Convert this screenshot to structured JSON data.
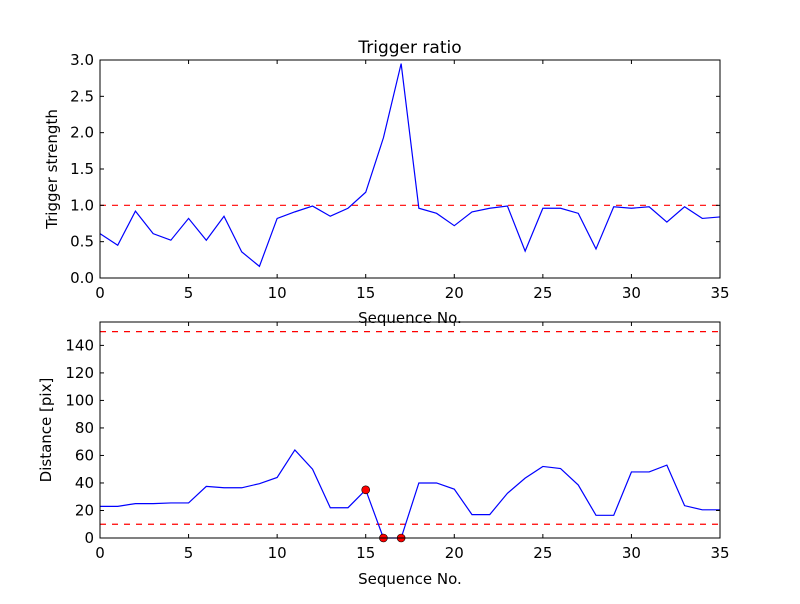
{
  "chart_data": [
    {
      "type": "line",
      "title": "Trigger ratio",
      "xlabel": "Sequence No.",
      "ylabel": "Trigger strength",
      "xlim": [
        0,
        35
      ],
      "ylim": [
        0,
        3.0
      ],
      "xticks": [
        "0",
        "5",
        "10",
        "15",
        "20",
        "25",
        "30",
        "35"
      ],
      "yticks": [
        "0.0",
        "0.5",
        "1.0",
        "1.5",
        "2.0",
        "2.5",
        "3.0"
      ],
      "series": [
        {
          "name": "trigger",
          "color": "#0000ff",
          "x": [
            0,
            1,
            2,
            3,
            4,
            5,
            6,
            7,
            8,
            9,
            10,
            11,
            12,
            13,
            14,
            15,
            16,
            17,
            18,
            19,
            20,
            21,
            22,
            23,
            24,
            25,
            26,
            27,
            28,
            29,
            30,
            31,
            32,
            33,
            34,
            35
          ],
          "y": [
            0.61,
            0.45,
            0.92,
            0.61,
            0.52,
            0.82,
            0.52,
            0.85,
            0.36,
            0.16,
            0.82,
            0.91,
            0.99,
            0.85,
            0.96,
            1.18,
            1.93,
            2.95,
            0.96,
            0.89,
            0.72,
            0.91,
            0.96,
            0.99,
            0.37,
            0.96,
            0.96,
            0.89,
            0.4,
            0.98,
            0.96,
            0.98,
            0.77,
            0.98,
            0.82,
            0.84
          ]
        }
      ],
      "thresholds": [
        {
          "value": 1.0,
          "color": "#ff0000",
          "style": "dashed"
        }
      ]
    },
    {
      "type": "line",
      "title": "",
      "xlabel": "Sequence No.",
      "ylabel": "Distance [pix]",
      "xlim": [
        0,
        35
      ],
      "ylim": [
        0,
        157
      ],
      "xticks": [
        "0",
        "5",
        "10",
        "15",
        "20",
        "25",
        "30",
        "35"
      ],
      "yticks": [
        "0",
        "20",
        "40",
        "60",
        "80",
        "100",
        "120",
        "140"
      ],
      "series": [
        {
          "name": "distance",
          "color": "#0000ff",
          "x": [
            0,
            1,
            2,
            3,
            4,
            5,
            6,
            7,
            8,
            9,
            10,
            11,
            12,
            13,
            14,
            15,
            16,
            17,
            18,
            19,
            20,
            21,
            22,
            23,
            24,
            25,
            26,
            27,
            28,
            29,
            30,
            31,
            32,
            33,
            34,
            35
          ],
          "y": [
            23,
            23,
            25,
            25,
            25.5,
            25.5,
            37.5,
            36.5,
            36.5,
            39.5,
            44,
            64,
            50,
            22,
            22,
            35,
            0,
            0,
            40,
            40,
            35.5,
            17,
            17,
            32.5,
            43.5,
            52,
            50.5,
            38.5,
            16.5,
            16.5,
            48,
            48,
            53,
            23.5,
            20.5,
            20.5
          ]
        }
      ],
      "markers": {
        "color": "#ff0000",
        "x": [
          15,
          16,
          17
        ],
        "y": [
          35,
          0,
          0
        ]
      },
      "thresholds": [
        {
          "value": 10,
          "color": "#ff0000",
          "style": "dashed"
        },
        {
          "value": 150,
          "color": "#ff0000",
          "style": "dashed"
        }
      ]
    }
  ]
}
